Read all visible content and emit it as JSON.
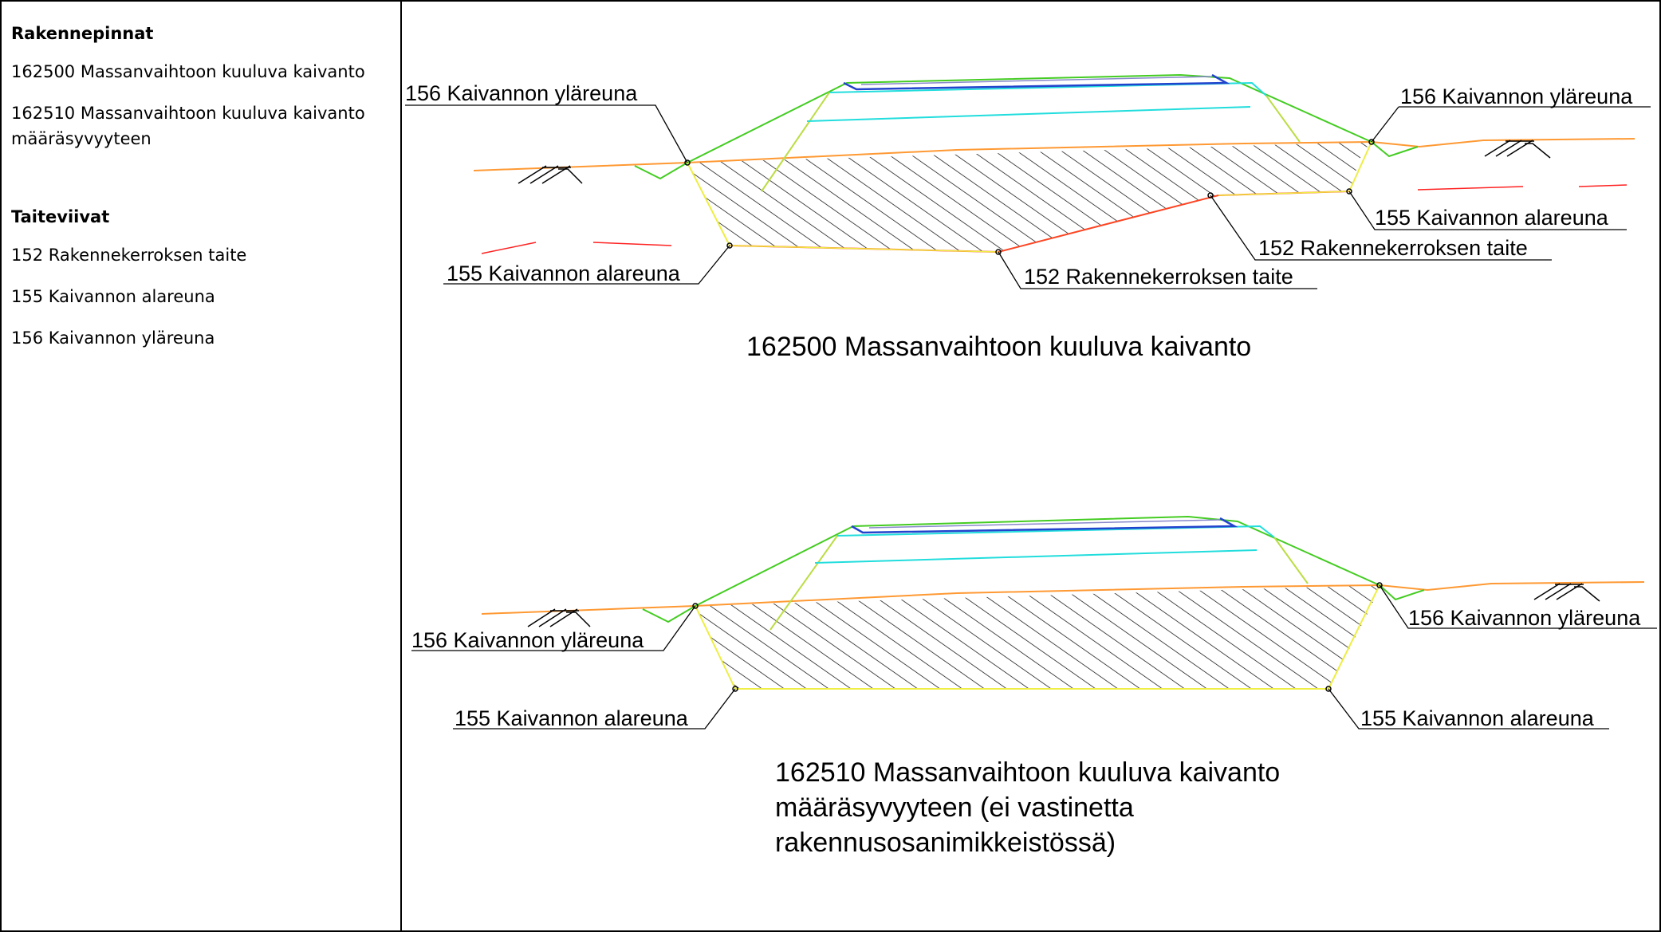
{
  "legend": {
    "structure_heading": "Rakennepinnat",
    "structure_items": [
      "162500 Massanvaihtoon kuuluva kaivanto",
      "162510 Massanvaihtoon kuuluva kaivanto määräsyvyyteen"
    ],
    "breakline_heading": "Taiteviivat",
    "breakline_items": [
      "152 Rakennekerroksen taite",
      "155 Kaivannon alareuna",
      "156 Kaivannon yläreuna"
    ]
  },
  "diagram_top": {
    "caption": "162500 Massanvaihtoon kuuluva kaivanto",
    "label_top_left": "156 Kaivannon yläreuna",
    "label_top_right": "156 Kaivannon yläreuna",
    "label_bottom_left": "155 Kaivannon alareuna",
    "label_bottom_right": "155 Kaivannon alareuna",
    "label_break_mid": "152 Rakennekerroksen taite",
    "label_break_right": "152 Rakennekerroksen taite"
  },
  "diagram_bottom": {
    "caption_lines": [
      "162510 Massanvaihtoon kuuluva kaivanto",
      "määräsyvyyteen (ei vastinetta",
      "rakennusosanimikkeistössä)"
    ],
    "label_top_left": "156 Kaivannon yläreuna",
    "label_top_right": "156 Kaivannon yläreuna",
    "label_bottom_left": "155 Kaivannon alareuna",
    "label_bottom_right": "155 Kaivannon alareuna"
  },
  "colors": {
    "embankment": "#44cc22",
    "structure_layer": "#22dddd",
    "ground": "#ff9933",
    "break_line": "#ff4422",
    "excavation_edge": "#eeee44",
    "pavement": "#2244cc",
    "hatch": "#000000"
  }
}
